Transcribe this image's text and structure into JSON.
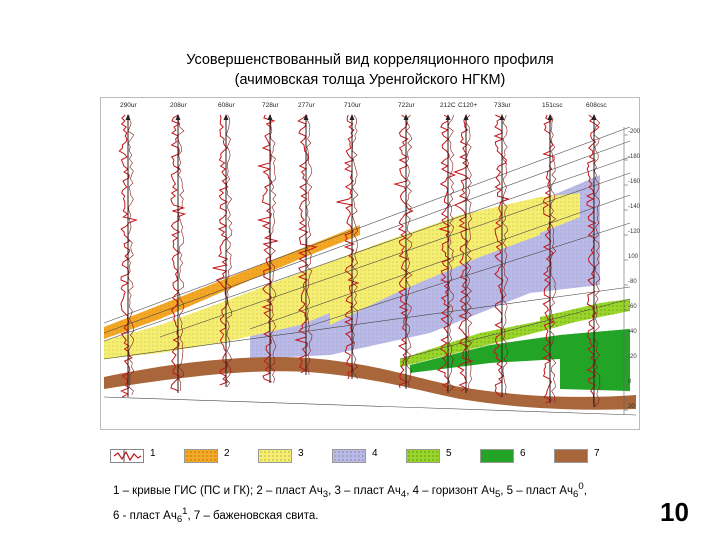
{
  "title": {
    "line1": "Усовершенствованный вид корреляционного профиля",
    "line2": "(ачимовская толща Уренгойского НГКМ)"
  },
  "wells": [
    "290ur",
    "208ur",
    "608ur",
    "728ur",
    "277ur",
    "710ur",
    "722ur",
    "212C",
    "C120+",
    "733ur",
    "151csc",
    "608csc"
  ],
  "depth_scale": [
    "-200",
    "-180",
    "-160",
    "-140",
    "-120",
    "100",
    "-80",
    "-60",
    "-40",
    "-20",
    "0",
    "20"
  ],
  "legend": {
    "items": [
      {
        "num": "1",
        "kind": "curves"
      },
      {
        "num": "2",
        "fill": "#f5a623",
        "kind": "dots"
      },
      {
        "num": "3",
        "fill": "#f5ee70",
        "kind": "dots"
      },
      {
        "num": "4",
        "fill": "#b9b9ea",
        "kind": "dots"
      },
      {
        "num": "5",
        "fill": "#9ad62a",
        "kind": "dots"
      },
      {
        "num": "6",
        "fill": "#22a526",
        "kind": "solid"
      },
      {
        "num": "7",
        "fill": "#a8663a",
        "kind": "solid"
      }
    ]
  },
  "caption": {
    "l1_a": "1 – кривые ГИС (ПС и ГК); 2 – пласт Ач",
    "l1_s1": "3",
    "l1_b": ", 3 – пласт Ач",
    "l1_s2": "4",
    "l1_c": ", 4 – горизонт Ач",
    "l1_s3": "5",
    "l1_d": ", 5 – пласт Ач",
    "l1_s4": "6",
    "l1_sup1": "0",
    "l1_e": ",",
    "l2_a": "6 - пласт Ач",
    "l2_s": "6",
    "l2_sup": "1",
    "l2_b": ", 7 – баженовская свита."
  },
  "page_number": "10",
  "colors": {
    "frame": "#bbbbbb",
    "curve": "#c4161c",
    "well": "#222222",
    "layer_ach3": "#f5a623",
    "layer_ach4": "#f5ee70",
    "horizon_ach5": "#b9b9ea",
    "layer_ach6_0": "#9ad62a",
    "layer_ach6_1": "#22a526",
    "bazhenov": "#a8663a"
  }
}
